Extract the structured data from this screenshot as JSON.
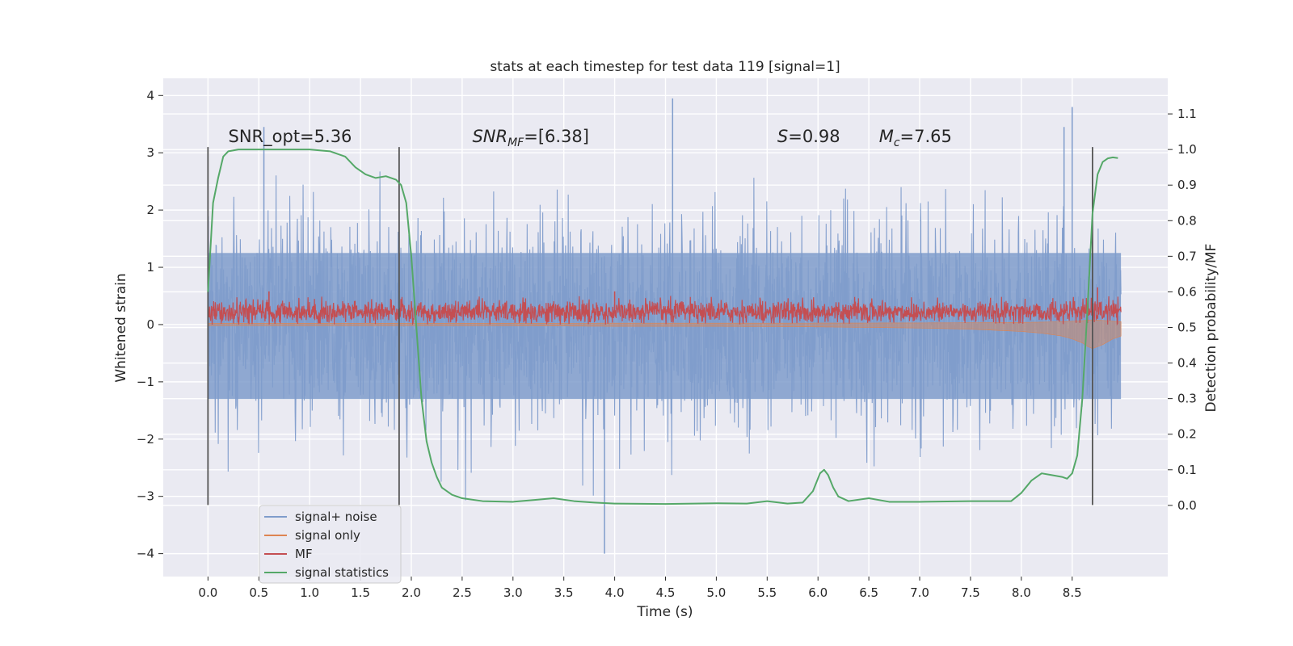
{
  "chart_data": {
    "type": "line",
    "title": "stats at each timestep for test data 119 [signal=1]",
    "xlabel": "Time (s)",
    "ylabel": "Whitened strain",
    "y2label": "Detection probability/MF",
    "xlim": [
      -0.44,
      9.44
    ],
    "ylim": [
      -4.4,
      4.3
    ],
    "y2lim": [
      -0.2,
      1.2
    ],
    "xticks": [
      "0.0",
      "0.5",
      "1.0",
      "1.5",
      "2.0",
      "2.5",
      "3.0",
      "3.5",
      "4.0",
      "4.5",
      "5.0",
      "5.5",
      "6.0",
      "6.5",
      "7.0",
      "7.5",
      "8.0",
      "8.5"
    ],
    "xtick_values": [
      0,
      0.5,
      1,
      1.5,
      2,
      2.5,
      3,
      3.5,
      4,
      4.5,
      5,
      5.5,
      6,
      6.5,
      7,
      7.5,
      8,
      8.5
    ],
    "yticks": [
      "−4",
      "−3",
      "−2",
      "−1",
      "0",
      "1",
      "2",
      "3",
      "4"
    ],
    "ytick_values": [
      -4,
      -3,
      -2,
      -1,
      0,
      1,
      2,
      3,
      4
    ],
    "y2ticks": [
      "0.0",
      "0.1",
      "0.2",
      "0.3",
      "0.4",
      "0.5",
      "0.6",
      "0.7",
      "0.8",
      "0.9",
      "1.0",
      "1.1"
    ],
    "y2tick_values": [
      0,
      0.1,
      0.2,
      0.3,
      0.4,
      0.5,
      0.6,
      0.7,
      0.8,
      0.9,
      1.0,
      1.1
    ],
    "grid": true,
    "legend_position": "lower-left",
    "colors": {
      "noise": "#7f9ccb",
      "signal": "#dd8452",
      "mf": "#c44e52",
      "stat": "#55a868",
      "vline": "#555555",
      "axes_bg": "#eaeaf2",
      "grid": "#ffffff"
    },
    "series": [
      {
        "name": "signal+ noise",
        "axis": "left",
        "x_range": [
          0,
          8.98
        ],
        "envelope_high": [
          2.0,
          2.5,
          2.9,
          2.8,
          3.4,
          3.0
        ],
        "envelope_low": [
          -1.5,
          -2.2,
          -2.9,
          -3.1,
          -4.0,
          -3.0
        ],
        "description_peaks": [
          [
            4.57,
            3.95
          ],
          [
            3.9,
            -4.0
          ],
          [
            8.5,
            3.8
          ],
          [
            8.42,
            3.45
          ],
          [
            0.55,
            3.45
          ]
        ]
      },
      {
        "name": "signal only",
        "axis": "left",
        "x": [
          0,
          1,
          2,
          3,
          4,
          5,
          6,
          6.5,
          7,
          7.5,
          8,
          8.2,
          8.4,
          8.5,
          8.6,
          8.65,
          8.7,
          8.8,
          8.9,
          8.98
        ],
        "amplitude": [
          0.02,
          0.02,
          0.02,
          0.02,
          0.03,
          0.03,
          0.04,
          0.05,
          0.06,
          0.08,
          0.12,
          0.15,
          0.2,
          0.25,
          0.32,
          0.38,
          0.42,
          0.35,
          0.25,
          0.2
        ]
      },
      {
        "name": "MF",
        "axis": "left",
        "x_range": [
          0,
          8.98
        ],
        "mean": 0.22,
        "band": [
          0.0,
          0.5
        ],
        "peaks": [
          [
            0.6,
            0.58
          ],
          [
            4.0,
            0.58
          ],
          [
            8.75,
            0.65
          ]
        ]
      },
      {
        "name": "signal statistics",
        "axis": "right",
        "x": [
          0,
          0.05,
          0.1,
          0.15,
          0.2,
          0.3,
          0.5,
          1.0,
          1.2,
          1.35,
          1.45,
          1.55,
          1.65,
          1.75,
          1.85,
          1.9,
          1.95,
          2.0,
          2.05,
          2.1,
          2.15,
          2.2,
          2.25,
          2.3,
          2.4,
          2.5,
          2.7,
          3.0,
          3.2,
          3.4,
          3.6,
          3.8,
          4.0,
          4.5,
          5.0,
          5.3,
          5.5,
          5.7,
          5.85,
          5.95,
          6.02,
          6.06,
          6.1,
          6.15,
          6.2,
          6.3,
          6.5,
          6.7,
          7.0,
          7.5,
          7.9,
          8.0,
          8.1,
          8.2,
          8.3,
          8.4,
          8.45,
          8.5,
          8.55,
          8.6,
          8.65,
          8.7,
          8.75,
          8.8,
          8.85,
          8.9,
          8.95
        ],
        "values": [
          0.6,
          0.85,
          0.92,
          0.98,
          0.995,
          1.0,
          1.0,
          1.0,
          0.995,
          0.98,
          0.95,
          0.93,
          0.92,
          0.925,
          0.915,
          0.9,
          0.85,
          0.7,
          0.5,
          0.3,
          0.18,
          0.12,
          0.08,
          0.05,
          0.03,
          0.02,
          0.012,
          0.01,
          0.015,
          0.02,
          0.012,
          0.008,
          0.005,
          0.004,
          0.006,
          0.005,
          0.012,
          0.005,
          0.008,
          0.04,
          0.09,
          0.1,
          0.085,
          0.05,
          0.025,
          0.012,
          0.02,
          0.01,
          0.01,
          0.012,
          0.012,
          0.035,
          0.07,
          0.09,
          0.085,
          0.08,
          0.075,
          0.09,
          0.14,
          0.3,
          0.55,
          0.82,
          0.93,
          0.965,
          0.975,
          0.978,
          0.976
        ]
      }
    ],
    "vertical_lines_x": [
      0.0,
      1.88,
      8.7
    ],
    "vertical_lines_y_range": [
      -3.15,
      3.1
    ],
    "annotations": [
      {
        "text": "SNR_opt=5.36",
        "x": 0.2,
        "y": 3.1
      },
      {
        "text": "SNR",
        "sub": "MF",
        "tail": "=[6.38]",
        "x": 2.6,
        "y": 3.1
      },
      {
        "text": "S",
        "tail": "=0.98",
        "x": 5.6,
        "y": 3.1
      },
      {
        "text": "M",
        "sub": "c",
        "tail": "=7.65",
        "x": 6.6,
        "y": 3.1
      }
    ],
    "legend": [
      "signal+ noise",
      "signal only",
      "MF",
      "signal statistics"
    ]
  }
}
